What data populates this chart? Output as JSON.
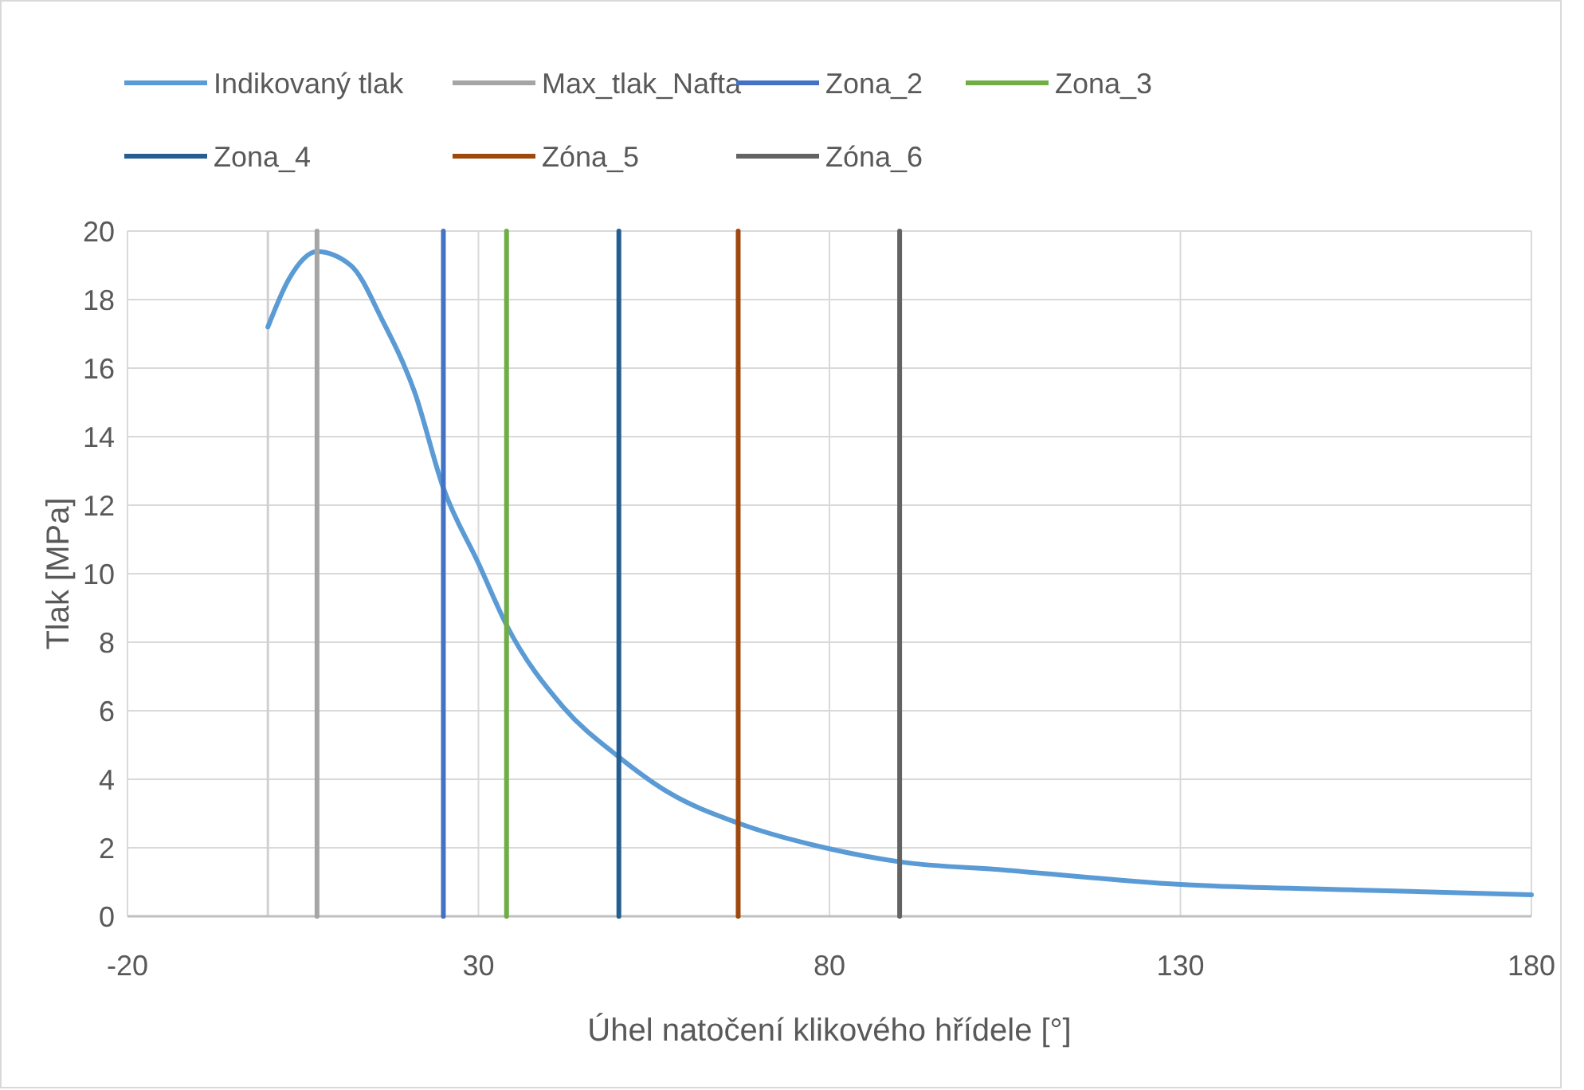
{
  "chart_data": {
    "type": "line",
    "xlabel": "Úhel natočení klikového hřídele [°]",
    "ylabel": "Tlak  [MPa]",
    "xlim": [
      -20,
      180
    ],
    "xticks": [
      -20,
      30,
      80,
      130,
      180
    ],
    "ylim": [
      0,
      20
    ],
    "yticks": [
      0,
      2,
      4,
      6,
      8,
      10,
      12,
      14,
      16,
      18,
      20
    ],
    "grid": true,
    "legend": "top",
    "marker": "none",
    "line_style": "solid",
    "series": [
      {
        "name": "Indikovaný tlak",
        "color": "#5b9bd5",
        "x": [
          0,
          3,
          7,
          11.8,
          16.3,
          20.9,
          25,
          30,
          34,
          42.1,
          50,
          57.2,
          67,
          80,
          90,
          105,
          130,
          155,
          180
        ],
        "values": [
          17.2,
          18.6,
          19.4,
          19.0,
          17.4,
          15.3,
          12.5,
          10.3,
          8.5,
          6.1,
          4.65,
          3.6,
          2.72,
          1.97,
          1.59,
          1.35,
          0.93,
          0.77,
          0.63
        ]
      },
      {
        "name": "Max_tlak_Nafta",
        "color": "#a5a5a5",
        "x": [
          7,
          7
        ],
        "values": [
          0,
          20
        ]
      },
      {
        "name": "Zona_2",
        "color": "#4472c4",
        "x": [
          25,
          25
        ],
        "values": [
          0,
          20
        ]
      },
      {
        "name": "Zona_3",
        "color": "#70ad47",
        "x": [
          34,
          34
        ],
        "values": [
          0,
          20
        ]
      },
      {
        "name": "Zona_4",
        "color": "#255e91",
        "x": [
          50,
          50
        ],
        "values": [
          0,
          20
        ]
      },
      {
        "name": "Zóna_5",
        "color": "#9e480e",
        "x": [
          67,
          67
        ],
        "values": [
          0,
          20
        ]
      },
      {
        "name": "Zóna_6",
        "color": "#636363",
        "x": [
          90,
          90
        ],
        "values": [
          0,
          20
        ]
      }
    ]
  }
}
